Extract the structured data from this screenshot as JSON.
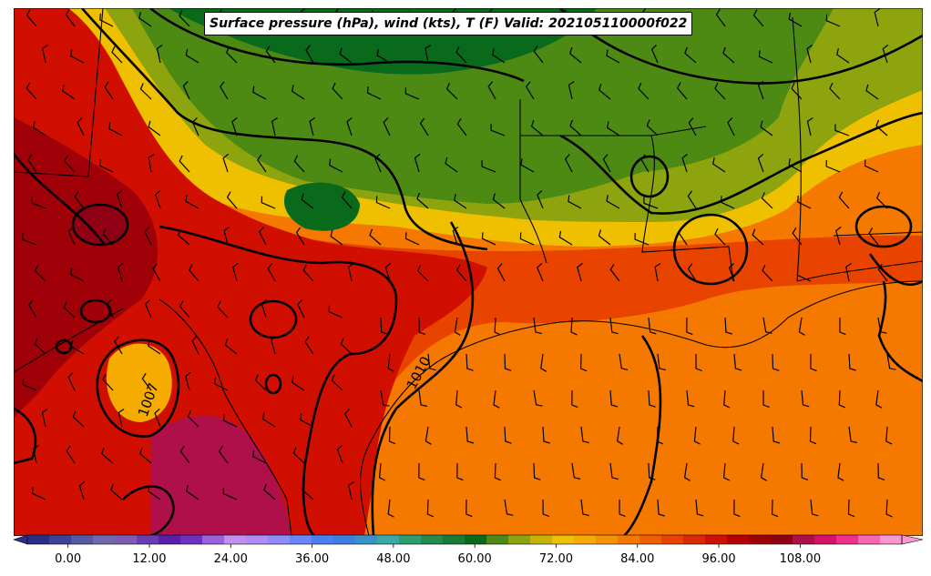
{
  "title": "Surface pressure (hPa), wind (kts), T (F) Valid: 202105110000f022",
  "isobar_labels": [
    "1007",
    "1010"
  ],
  "colorbar": {
    "ticks": [
      "0.00",
      "12.00",
      "24.00",
      "36.00",
      "48.00",
      "60.00",
      "72.00",
      "84.00",
      "96.00",
      "108.00"
    ],
    "min": -6,
    "max": 123,
    "step": 3,
    "colors": [
      "#2a2f86",
      "#3e4296",
      "#565aa6",
      "#6f69b0",
      "#7d5cb4",
      "#6b3db0",
      "#5a1fa8",
      "#6d30c0",
      "#9a62dd",
      "#c28ef0",
      "#b08cf7",
      "#8e8cfb",
      "#6a86fc",
      "#4a7ef4",
      "#3d7fe0",
      "#3a90c8",
      "#3ba8a8",
      "#2f9c74",
      "#248a4f",
      "#1a7a37",
      "#0a6a1c",
      "#4d8a14",
      "#8ea40e",
      "#c6b404",
      "#eec000",
      "#f5ab00",
      "#f59200",
      "#f57800",
      "#f25f00",
      "#e84400",
      "#dc2a00",
      "#d10f00",
      "#b80004",
      "#a00008",
      "#900014",
      "#b0104a",
      "#d8106a",
      "#f0308a",
      "#f868b0",
      "#fc96d0"
    ]
  },
  "field_colors": {
    "green_dark": "#0a6a1c",
    "green": "#4d8a14",
    "olive": "#8ea40e",
    "yellow": "#eec000",
    "orange_light": "#f5ab00",
    "orange": "#f57800",
    "orange_red": "#e84400",
    "red": "#d10f00",
    "dark_red": "#a00008",
    "maroon": "#900014",
    "magenta": "#b0104a"
  }
}
